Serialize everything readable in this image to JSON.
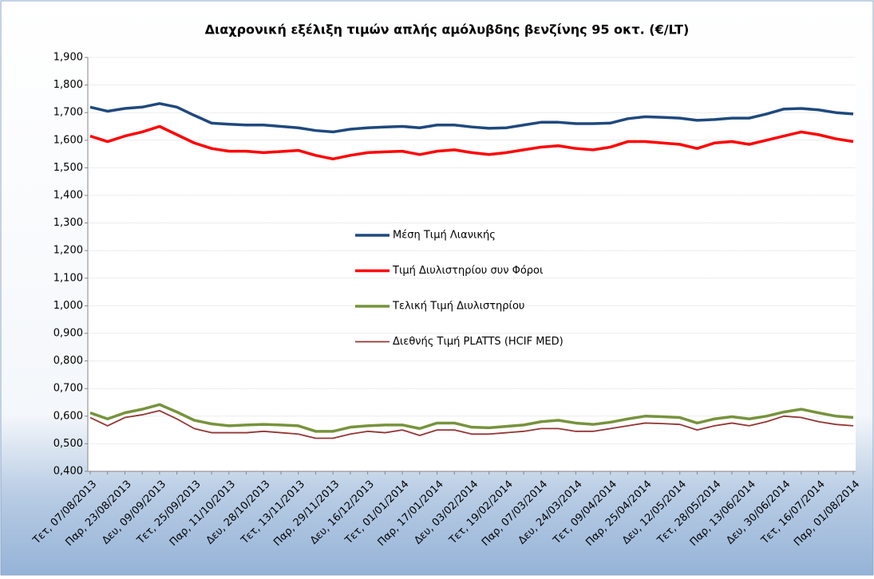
{
  "chart_data": {
    "type": "line",
    "title": "Διαχρονική εξέλιξη τιμών απλής αμόλυβδης βενζίνης 95 οκτ. (€/LT)",
    "categories": [
      "Τετ, 07/08/2013",
      null,
      "Παρ, 23/08/2013",
      null,
      "Δευ, 09/09/2013",
      null,
      "Τετ, 25/09/2013",
      null,
      "Παρ, 11/10/2013",
      null,
      "Δευ, 28/10/2013",
      null,
      "Τετ, 13/11/2013",
      null,
      "Παρ, 29/11/2013",
      null,
      "Δευ, 16/12/2013",
      null,
      "Τετ, 01/01/2014",
      null,
      "Παρ, 17/01/2014",
      null,
      "Δευ, 03/02/2014",
      null,
      "Τετ, 19/02/2014",
      null,
      "Παρ, 07/03/2014",
      null,
      "Δευ, 24/03/2014",
      null,
      "Τετ, 09/04/2014",
      null,
      "Παρ, 25/04/2014",
      null,
      "Δευ, 12/05/2014",
      null,
      "Τετ, 28/05/2014",
      null,
      "Παρ, 13/06/2014",
      null,
      "Δευ, 30/06/2014",
      null,
      "Τετ, 16/07/2014",
      null,
      "Παρ, 01/08/2014"
    ],
    "series": [
      {
        "name": "Μέση Τιμή Λιανικής",
        "color": "#1f497d",
        "width": 3.5,
        "values": [
          1.72,
          1.705,
          1.715,
          1.72,
          1.733,
          1.72,
          1.69,
          1.662,
          1.658,
          1.655,
          1.655,
          1.65,
          1.645,
          1.635,
          1.63,
          1.64,
          1.645,
          1.648,
          1.65,
          1.645,
          1.655,
          1.655,
          1.648,
          1.643,
          1.645,
          1.655,
          1.665,
          1.665,
          1.66,
          1.66,
          1.662,
          1.678,
          1.685,
          1.683,
          1.68,
          1.672,
          1.675,
          1.68,
          1.68,
          1.695,
          1.713,
          1.715,
          1.71,
          1.7,
          1.695
        ]
      },
      {
        "name": "Τιμή Διυλιστηρίου συν Φόροι",
        "color": "#ff0000",
        "width": 3.5,
        "values": [
          1.615,
          1.595,
          1.615,
          1.63,
          1.65,
          1.62,
          1.59,
          1.57,
          1.56,
          1.56,
          1.555,
          1.559,
          1.563,
          1.545,
          1.532,
          1.545,
          1.555,
          1.558,
          1.56,
          1.548,
          1.56,
          1.565,
          1.555,
          1.548,
          1.555,
          1.565,
          1.575,
          1.58,
          1.57,
          1.565,
          1.575,
          1.595,
          1.595,
          1.59,
          1.585,
          1.57,
          1.59,
          1.595,
          1.585,
          1.6,
          1.615,
          1.63,
          1.62,
          1.605,
          1.595
        ]
      },
      {
        "name": "Τελική Τιμή Διυλιστηρίου",
        "color": "#77933c",
        "width": 3.5,
        "values": [
          0.612,
          0.59,
          0.612,
          0.625,
          0.642,
          0.615,
          0.585,
          0.572,
          0.565,
          0.568,
          0.57,
          0.568,
          0.565,
          0.545,
          0.545,
          0.56,
          0.565,
          0.568,
          0.568,
          0.555,
          0.575,
          0.575,
          0.56,
          0.558,
          0.563,
          0.568,
          0.58,
          0.585,
          0.575,
          0.57,
          0.578,
          0.59,
          0.6,
          0.598,
          0.595,
          0.575,
          0.59,
          0.598,
          0.59,
          0.6,
          0.615,
          0.625,
          0.612,
          0.6,
          0.595
        ]
      },
      {
        "name": "Διεθνής Τιμή PLATTS (HCIF MED)",
        "color": "#943634",
        "width": 1.8,
        "values": [
          0.595,
          0.565,
          0.595,
          0.605,
          0.62,
          0.59,
          0.555,
          0.54,
          0.54,
          0.54,
          0.545,
          0.54,
          0.535,
          0.52,
          0.52,
          0.535,
          0.545,
          0.54,
          0.55,
          0.53,
          0.55,
          0.55,
          0.535,
          0.535,
          0.54,
          0.545,
          0.555,
          0.555,
          0.545,
          0.545,
          0.555,
          0.565,
          0.575,
          0.573,
          0.57,
          0.55,
          0.565,
          0.575,
          0.565,
          0.58,
          0.6,
          0.595,
          0.58,
          0.57,
          0.565
        ]
      }
    ],
    "ylim": [
      0.4,
      1.9
    ],
    "yticks": [
      {
        "value": 0.4,
        "label": "0,400"
      },
      {
        "value": 0.5,
        "label": "0,500"
      },
      {
        "value": 0.6,
        "label": "0,600"
      },
      {
        "value": 0.7,
        "label": "0,700"
      },
      {
        "value": 0.8,
        "label": "0,800"
      },
      {
        "value": 0.9,
        "label": "0,900"
      },
      {
        "value": 1.0,
        "label": "1,000"
      },
      {
        "value": 1.1,
        "label": "1,100"
      },
      {
        "value": 1.2,
        "label": "1,200"
      },
      {
        "value": 1.3,
        "label": "1,300"
      },
      {
        "value": 1.4,
        "label": "1,400"
      },
      {
        "value": 1.5,
        "label": "1,500"
      },
      {
        "value": 1.6,
        "label": "1,600"
      },
      {
        "value": 1.7,
        "label": "1,700"
      },
      {
        "value": 1.8,
        "label": "1,800"
      },
      {
        "value": 1.9,
        "label": "1,900"
      }
    ],
    "grid": true,
    "legend": "center"
  }
}
